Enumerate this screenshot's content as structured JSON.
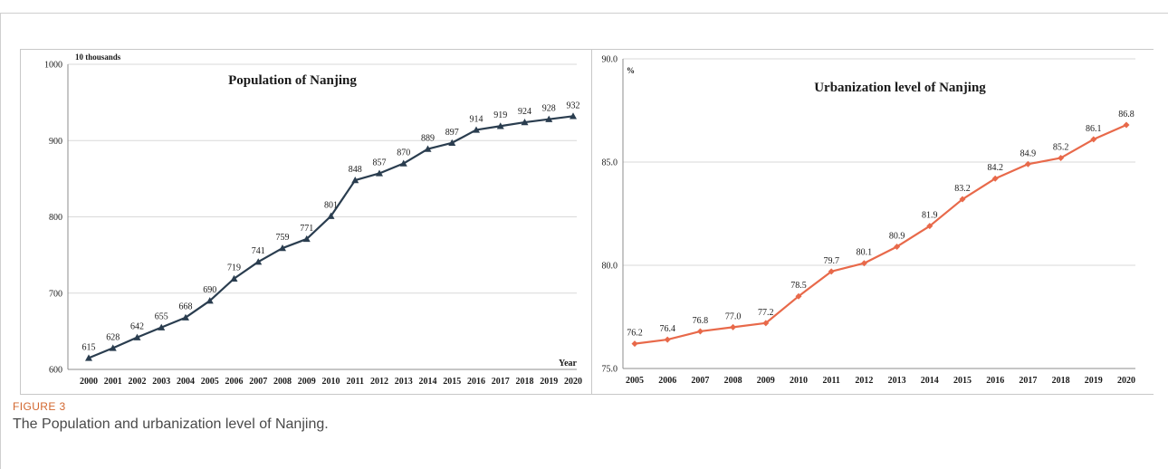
{
  "figure": {
    "label": "FIGURE 3",
    "caption": "The Population and urbanization level of Nanjing."
  },
  "chart_data": [
    {
      "type": "line",
      "title": "Population of Nanjing",
      "ylabel": "10 thousands",
      "xlabel": "Year",
      "x": [
        "2000",
        "2001",
        "2002",
        "2003",
        "2004",
        "2005",
        "2006",
        "2007",
        "2008",
        "2009",
        "2010",
        "2011",
        "2012",
        "2013",
        "2014",
        "2015",
        "2016",
        "2017",
        "2018",
        "2019",
        "2020"
      ],
      "series": [
        {
          "values": [
            615,
            628,
            642,
            655,
            668,
            690,
            719,
            741,
            759,
            771,
            801,
            848,
            857,
            870,
            889,
            897,
            914,
            919,
            924,
            928,
            932
          ]
        }
      ],
      "data_labels": [
        "615",
        "628",
        "642",
        "655",
        "668",
        "690",
        "719",
        "741",
        "759",
        "771",
        "801",
        "848",
        "857",
        "870",
        "889",
        "897",
        "914",
        "919",
        "924",
        "928",
        "932"
      ],
      "ylim": [
        600,
        1000
      ],
      "yticks": [
        600,
        700,
        800,
        900,
        1000
      ],
      "ytick_labels": [
        "600",
        "700",
        "800",
        "900",
        "1000"
      ],
      "grid": true,
      "marker": "triangle",
      "color": "#2a3d4f"
    },
    {
      "type": "line",
      "title": "Urbanization level of Nanjing",
      "ylabel": "%",
      "xlabel": "",
      "x": [
        "2005",
        "2006",
        "2007",
        "2008",
        "2009",
        "2010",
        "2011",
        "2012",
        "2013",
        "2014",
        "2015",
        "2016",
        "2017",
        "2018",
        "2019",
        "2020"
      ],
      "series": [
        {
          "values": [
            76.2,
            76.4,
            76.8,
            77.0,
            77.2,
            78.5,
            79.7,
            80.1,
            80.9,
            81.9,
            83.2,
            84.2,
            84.9,
            85.2,
            86.1,
            86.8
          ]
        }
      ],
      "data_labels": [
        "76.2",
        "76.4",
        "76.8",
        "77.0",
        "77.2",
        "78.5",
        "79.7",
        "80.1",
        "80.9",
        "81.9",
        "83.2",
        "84.2",
        "84.9",
        "85.2",
        "86.1",
        "86.8"
      ],
      "ylim": [
        75.0,
        90.0
      ],
      "yticks": [
        75.0,
        80.0,
        85.0,
        90.0
      ],
      "ytick_labels": [
        "75.0",
        "80.0",
        "85.0",
        "90.0"
      ],
      "grid": true,
      "marker": "diamond",
      "color": "#e8694a"
    }
  ]
}
